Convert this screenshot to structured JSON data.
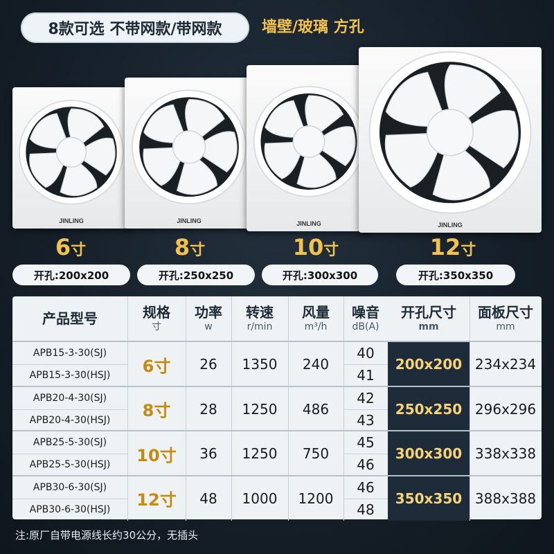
{
  "top_pill": "8款可选 不带网款/带网款",
  "wall_label": "墙壁/玻璃 方孔",
  "brand_logo_text": "JINLING",
  "fans": [
    {
      "size_num": "6",
      "unit": "寸",
      "hole": "开孔:200x200"
    },
    {
      "size_num": "8",
      "unit": "寸",
      "hole": "开孔:250x250"
    },
    {
      "size_num": "10",
      "unit": "寸",
      "hole": "开孔:300x300"
    },
    {
      "size_num": "12",
      "unit": "寸",
      "hole": "开孔:350x350"
    }
  ],
  "table": {
    "headers": [
      {
        "title": "产品型号",
        "sub": ""
      },
      {
        "title": "规格",
        "sub": "寸"
      },
      {
        "title": "功率",
        "sub": "w"
      },
      {
        "title": "转速",
        "sub": "r/min"
      },
      {
        "title": "风量",
        "sub": "m³/h"
      },
      {
        "title": "噪音",
        "sub": "dB(A)"
      },
      {
        "title": "开孔尺寸",
        "sub": "mm"
      },
      {
        "title": "面板尺寸",
        "sub": "mm"
      }
    ],
    "rows": [
      {
        "models": [
          "APB15-3-30(SJ)",
          "APB15-3-30(HSJ)"
        ],
        "spec": "6寸",
        "power": "26",
        "speed": "1350",
        "air": "240",
        "noise": [
          "40",
          "41"
        ],
        "hole": "200x200",
        "panel": "234x234"
      },
      {
        "models": [
          "APB20-4-30(SJ)",
          "APB20-4-30(HSJ)"
        ],
        "spec": "8寸",
        "power": "28",
        "speed": "1250",
        "air": "486",
        "noise": [
          "42",
          "43"
        ],
        "hole": "250x250",
        "panel": "296x296"
      },
      {
        "models": [
          "APB25-5-30(SJ)",
          "APB25-5-30(HSJ)"
        ],
        "spec": "10寸",
        "power": "36",
        "speed": "1250",
        "air": "750",
        "noise": [
          "45",
          "46"
        ],
        "hole": "300x300",
        "panel": "338x338"
      },
      {
        "models": [
          "APB30-6-30(SJ)",
          "APB30-6-30(HSJ)"
        ],
        "spec": "12寸",
        "power": "48",
        "speed": "1000",
        "air": "1200",
        "noise": [
          "46",
          "48"
        ],
        "hole": "350x350",
        "panel": "388x388"
      }
    ]
  },
  "note": "注:原厂自带电源线长约30公分，无插头",
  "colors": {
    "accent_gold": "#f2c14e",
    "background": "#16202a",
    "panel": "#eef2f5"
  }
}
